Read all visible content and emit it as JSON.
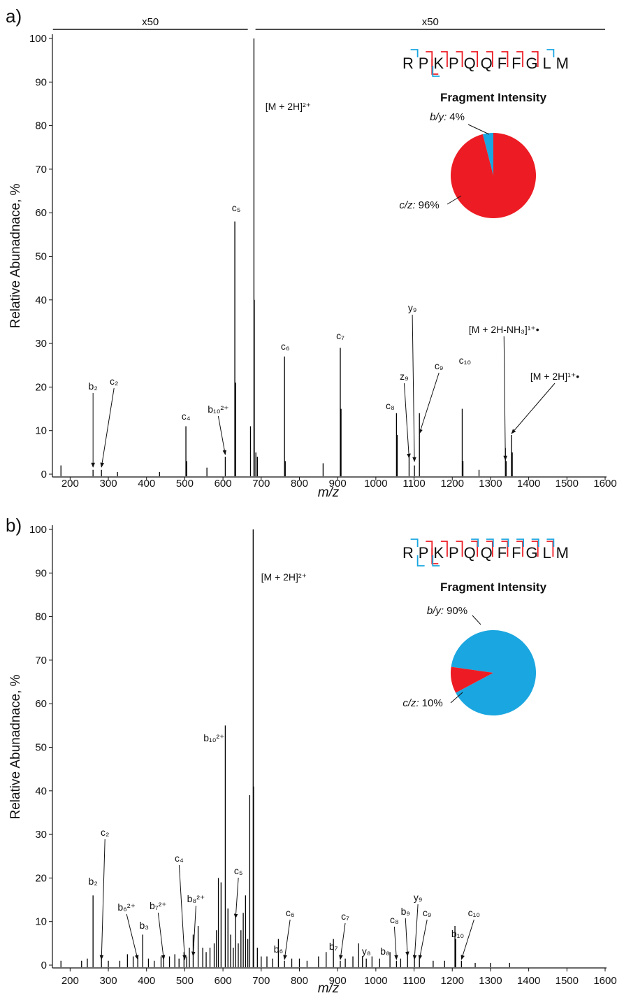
{
  "chart_data": [
    {
      "type": "stem",
      "panel_label": "a)",
      "xlabel": "m/z",
      "ylabel": "Relative Abunadnace, %",
      "color": "#000000",
      "x": [
        176,
        260,
        282,
        324,
        434,
        503,
        505,
        558,
        606,
        631,
        633,
        672,
        681,
        682,
        686,
        690,
        761,
        763,
        862,
        907,
        909,
        1054,
        1056,
        1087,
        1101,
        1114,
        1226,
        1228,
        1270,
        1339,
        1341,
        1355,
        1357
      ],
      "values": [
        2,
        1,
        1,
        0.5,
        0.5,
        11,
        3,
        1.5,
        4,
        58,
        21,
        11,
        100,
        40,
        5,
        4,
        27,
        3,
        2.5,
        29,
        15,
        14,
        9,
        4,
        2,
        14,
        15,
        3,
        1,
        6,
        3,
        9,
        5
      ],
      "xlim": [
        150,
        1600
      ],
      "ylim": [
        0,
        100
      ],
      "xticks": [
        200,
        300,
        400,
        500,
        600,
        700,
        800,
        900,
        1000,
        1100,
        1200,
        1300,
        1400,
        1500,
        1600
      ],
      "yticks": [
        0,
        10,
        20,
        30,
        40,
        50,
        60,
        70,
        80,
        90,
        100
      ],
      "zoom_regions": [
        {
          "label": "x50",
          "xrange": [
            155,
            665
          ]
        },
        {
          "label": "x50",
          "xrange": [
            685,
            1600
          ]
        }
      ],
      "annotations": [
        {
          "text": "b₂",
          "x": 260
        },
        {
          "text": "c₂",
          "x": 282
        },
        {
          "text": "c₄",
          "x": 503
        },
        {
          "text": "b₁₀²⁺",
          "x": 606
        },
        {
          "text": "c₅",
          "x": 631
        },
        {
          "text": "[M + 2H]²⁺",
          "x": 681
        },
        {
          "text": "c₆",
          "x": 761
        },
        {
          "text": "c₇",
          "x": 907
        },
        {
          "text": "c₈",
          "x": 1054
        },
        {
          "text": "z₉",
          "x": 1087
        },
        {
          "text": "y₉",
          "x": 1101
        },
        {
          "text": "c₉",
          "x": 1114
        },
        {
          "text": "c₁₀",
          "x": 1226
        },
        {
          "text": "[M + 2H-NH₃]¹⁺•",
          "x": 1339
        },
        {
          "text": "[M + 2H]¹⁺•",
          "x": 1355
        }
      ]
    },
    {
      "type": "pie",
      "title": "Fragment Intensity",
      "sequence": "RPKPQQFFGLM",
      "categories": [
        "b/y:",
        "c/z:"
      ],
      "values": [
        4,
        96
      ],
      "value_labels": [
        "4%",
        "96%"
      ],
      "colors": [
        "#1aa6e0",
        "#ed1c24"
      ],
      "startangle": -14.4
    },
    {
      "type": "stem",
      "panel_label": "b)",
      "xlabel": "m/z",
      "ylabel": "Relative Abunadnace, %",
      "color": "#000000",
      "x": [
        176,
        230,
        245,
        260,
        282,
        300,
        330,
        350,
        365,
        377,
        390,
        405,
        420,
        438,
        445,
        460,
        474,
        485,
        498,
        505,
        512,
        522,
        535,
        547,
        556,
        566,
        577,
        583,
        588,
        595,
        606,
        613,
        620,
        627,
        633,
        640,
        647,
        653,
        659,
        665,
        670,
        679,
        680,
        690,
        700,
        715,
        730,
        745,
        761,
        780,
        800,
        820,
        850,
        870,
        889,
        907,
        920,
        940,
        955,
        965,
        975,
        990,
        1010,
        1037,
        1054,
        1065,
        1083,
        1101,
        1114,
        1150,
        1180,
        1207,
        1209,
        1224,
        1260,
        1300,
        1350
      ],
      "values": [
        1,
        1,
        1.5,
        16,
        2,
        1,
        1,
        2.5,
        2,
        2,
        7,
        1.5,
        1,
        2,
        1.5,
        2,
        2.5,
        1.5,
        3,
        2,
        4,
        7,
        9,
        4,
        3,
        4,
        5,
        8,
        20,
        19,
        55,
        13,
        7,
        4,
        11,
        5,
        8,
        12,
        16,
        6,
        39,
        100,
        41,
        4,
        2,
        2,
        1.5,
        6,
        1,
        1.5,
        1.5,
        1,
        2,
        3,
        6,
        1,
        1.5,
        2,
        5,
        2,
        1.5,
        2,
        1.5,
        3,
        1,
        1.5,
        3,
        2,
        2,
        1,
        1,
        9,
        6,
        1,
        0.5,
        0.5,
        0.5
      ],
      "xlim": [
        150,
        1600
      ],
      "ylim": [
        0,
        100
      ],
      "xticks": [
        200,
        300,
        400,
        500,
        600,
        700,
        800,
        900,
        1000,
        1100,
        1200,
        1300,
        1400,
        1500,
        1600
      ],
      "yticks": [
        0,
        10,
        20,
        30,
        40,
        50,
        60,
        70,
        80,
        90,
        100
      ],
      "annotations": [
        {
          "text": "b₂",
          "x": 260
        },
        {
          "text": "c₂",
          "x": 282
        },
        {
          "text": "b₆²⁺",
          "x": 377
        },
        {
          "text": "b₃",
          "x": 390
        },
        {
          "text": "b₇²⁺",
          "x": 445
        },
        {
          "text": "c₄",
          "x": 500
        },
        {
          "text": "b₈²⁺",
          "x": 522
        },
        {
          "text": "b₁₀²⁺",
          "x": 606
        },
        {
          "text": "c₅",
          "x": 633
        },
        {
          "text": "c₆",
          "x": 761
        },
        {
          "text": "b₆",
          "x": 745
        },
        {
          "text": "c₇",
          "x": 907
        },
        {
          "text": "b₇",
          "x": 889
        },
        {
          "text": "y₈",
          "x": 955
        },
        {
          "text": "c₈",
          "x": 1054
        },
        {
          "text": "b₈",
          "x": 1037
        },
        {
          "text": "b₉",
          "x": 1083
        },
        {
          "text": "y₉",
          "x": 1101
        },
        {
          "text": "c₉",
          "x": 1114
        },
        {
          "text": "b₁₀",
          "x": 1207
        },
        {
          "text": "c₁₀",
          "x": 1224
        },
        {
          "text": "[M + 2H]²⁺",
          "x": 679
        }
      ]
    },
    {
      "type": "pie",
      "title": "Fragment Intensity",
      "sequence": "RPKPQQFFGLM",
      "categories": [
        "b/y:",
        "c/z:"
      ],
      "values": [
        90,
        10
      ],
      "value_labels": [
        "90%",
        "10%"
      ],
      "colors": [
        "#1aa6e0",
        "#ed1c24"
      ],
      "startangle": 278
    }
  ]
}
